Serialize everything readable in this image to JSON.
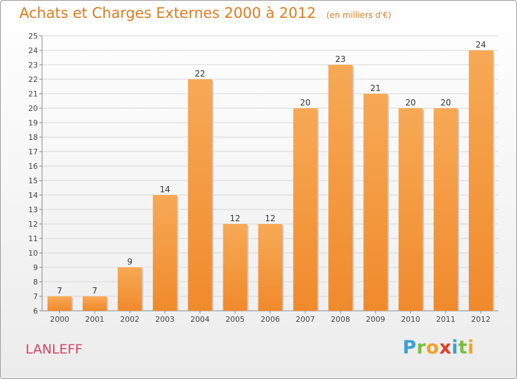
{
  "chart_data": {
    "type": "bar",
    "title": "Achats et Charges Externes 2000 à 2012",
    "subtitle": "(en milliers d'€)",
    "categories": [
      "2000",
      "2001",
      "2002",
      "2003",
      "2004",
      "2005",
      "2006",
      "2007",
      "2008",
      "2009",
      "2010",
      "2011",
      "2012"
    ],
    "values": [
      7,
      7,
      9,
      14,
      22,
      12,
      12,
      20,
      23,
      21,
      20,
      20,
      24
    ],
    "ylim": [
      6,
      25
    ],
    "yticks": [
      6,
      7,
      8,
      9,
      10,
      11,
      12,
      13,
      14,
      15,
      16,
      17,
      18,
      19,
      20,
      21,
      22,
      23,
      24,
      25
    ],
    "grid": true,
    "bar_color": "#f08a2c",
    "bar_color_light": "#f7a955"
  },
  "footer": {
    "place": "LANLEFF",
    "logo": [
      "P",
      "r",
      "o",
      "x",
      "i",
      "t",
      "i"
    ]
  }
}
